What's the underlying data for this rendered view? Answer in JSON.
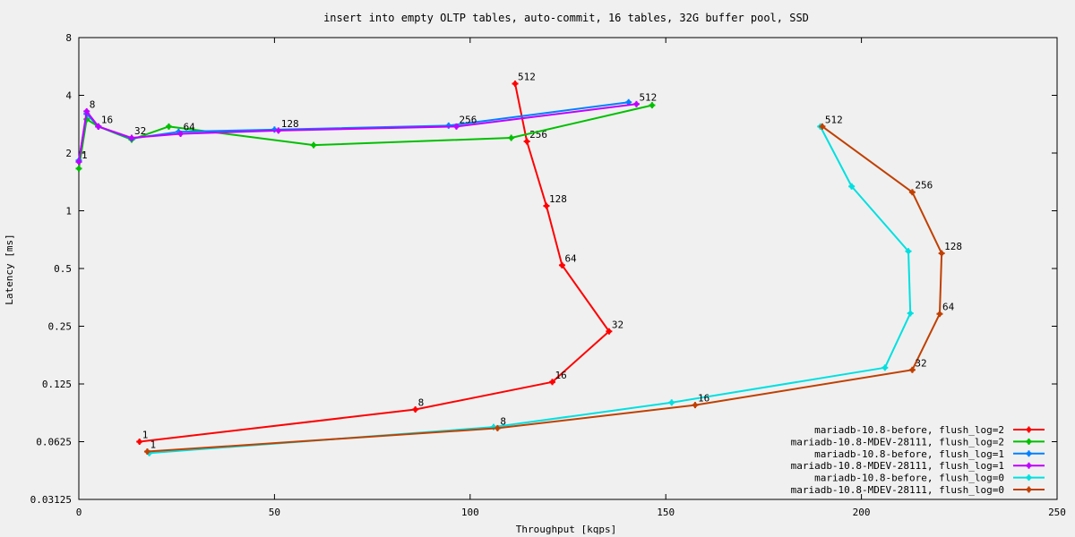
{
  "chart_data": {
    "type": "line",
    "title": "insert into empty OLTP tables, auto-commit, 16 tables, 32G buffer pool, SSD",
    "xlabel": "Throughput [kqps]",
    "ylabel": "Latency [ms]",
    "xlim": [
      0,
      250
    ],
    "ylim": [
      0.03125,
      8
    ],
    "yscale": "log2",
    "x_ticks": [
      "0",
      "50",
      "100",
      "150",
      "200",
      "250"
    ],
    "y_ticks": [
      "0.03125",
      "0.0625",
      "0.125",
      "0.25",
      "0.5",
      "1",
      "2",
      "4",
      "8"
    ],
    "grid": false,
    "legend_position": "bottom-right",
    "series": [
      {
        "name": "mariadb-10.8-before, flush_log=2",
        "color": "#ff0000",
        "points": [
          {
            "label": "1",
            "x": 15.5,
            "y": 0.0625
          },
          {
            "label": "8",
            "x": 86,
            "y": 0.092
          },
          {
            "label": "16",
            "x": 121,
            "y": 0.128
          },
          {
            "label": "32",
            "x": 135.5,
            "y": 0.235
          },
          {
            "label": "64",
            "x": 123.5,
            "y": 0.52
          },
          {
            "label": "128",
            "x": 119.5,
            "y": 1.06
          },
          {
            "label": "256",
            "x": 114.5,
            "y": 2.3
          },
          {
            "label": "512",
            "x": 111.5,
            "y": 4.6
          }
        ]
      },
      {
        "name": "mariadb-10.8-MDEV-28111, flush_log=2",
        "color": "#00c000",
        "points": [
          {
            "label": "",
            "x": 0,
            "y": 1.66
          },
          {
            "label": "",
            "x": 2,
            "y": 3.0
          },
          {
            "label": "",
            "x": 5,
            "y": 2.75
          },
          {
            "label": "",
            "x": 13.5,
            "y": 2.35
          },
          {
            "label": "",
            "x": 23,
            "y": 2.75
          },
          {
            "label": "",
            "x": 60,
            "y": 2.2
          },
          {
            "label": "",
            "x": 110.5,
            "y": 2.4
          },
          {
            "label": "",
            "x": 146.5,
            "y": 3.55
          }
        ]
      },
      {
        "name": "mariadb-10.8-before, flush_log=1",
        "color": "#0080ff",
        "points": [
          {
            "label": "",
            "x": 0,
            "y": 1.83
          },
          {
            "label": "",
            "x": 2,
            "y": 3.2
          },
          {
            "label": "",
            "x": 5,
            "y": 2.75
          },
          {
            "label": "",
            "x": 13.5,
            "y": 2.38
          },
          {
            "label": "",
            "x": 25.5,
            "y": 2.58
          },
          {
            "label": "",
            "x": 50,
            "y": 2.65
          },
          {
            "label": "",
            "x": 94.5,
            "y": 2.78
          },
          {
            "label": "",
            "x": 140.5,
            "y": 3.68
          }
        ]
      },
      {
        "name": "mariadb-10.8-MDEV-28111, flush_log=1",
        "color": "#c000ff",
        "points": [
          {
            "label": "1",
            "x": 0,
            "y": 1.8
          },
          {
            "label": "8",
            "x": 2,
            "y": 3.3
          },
          {
            "label": "16",
            "x": 5,
            "y": 2.75
          },
          {
            "label": "32",
            "x": 13.5,
            "y": 2.4
          },
          {
            "label": "64",
            "x": 26,
            "y": 2.52
          },
          {
            "label": "128",
            "x": 51,
            "y": 2.62
          },
          {
            "label": "256",
            "x": 96.5,
            "y": 2.75
          },
          {
            "label": "512",
            "x": 142.5,
            "y": 3.6
          }
        ]
      },
      {
        "name": "mariadb-10.8-before, flush_log=0",
        "color": "#00e0e0",
        "points": [
          {
            "label": "",
            "x": 18,
            "y": 0.0545
          },
          {
            "label": "",
            "x": 106,
            "y": 0.0745
          },
          {
            "label": "",
            "x": 151.5,
            "y": 0.1
          },
          {
            "label": "",
            "x": 206,
            "y": 0.152
          },
          {
            "label": "",
            "x": 212.5,
            "y": 0.292
          },
          {
            "label": "",
            "x": 212,
            "y": 0.615
          },
          {
            "label": "",
            "x": 197.5,
            "y": 1.34
          },
          {
            "label": "",
            "x": 189.5,
            "y": 2.75
          }
        ]
      },
      {
        "name": "mariadb-10.8-MDEV-28111, flush_log=0",
        "color": "#c04000",
        "points": [
          {
            "label": "1",
            "x": 17.5,
            "y": 0.0555
          },
          {
            "label": "8",
            "x": 107,
            "y": 0.0735
          },
          {
            "label": "16",
            "x": 157.5,
            "y": 0.097
          },
          {
            "label": "32",
            "x": 213,
            "y": 0.148
          },
          {
            "label": "64",
            "x": 220,
            "y": 0.29
          },
          {
            "label": "128",
            "x": 220.5,
            "y": 0.6
          },
          {
            "label": "256",
            "x": 213,
            "y": 1.25
          },
          {
            "label": "512",
            "x": 190,
            "y": 2.75
          }
        ]
      }
    ]
  }
}
